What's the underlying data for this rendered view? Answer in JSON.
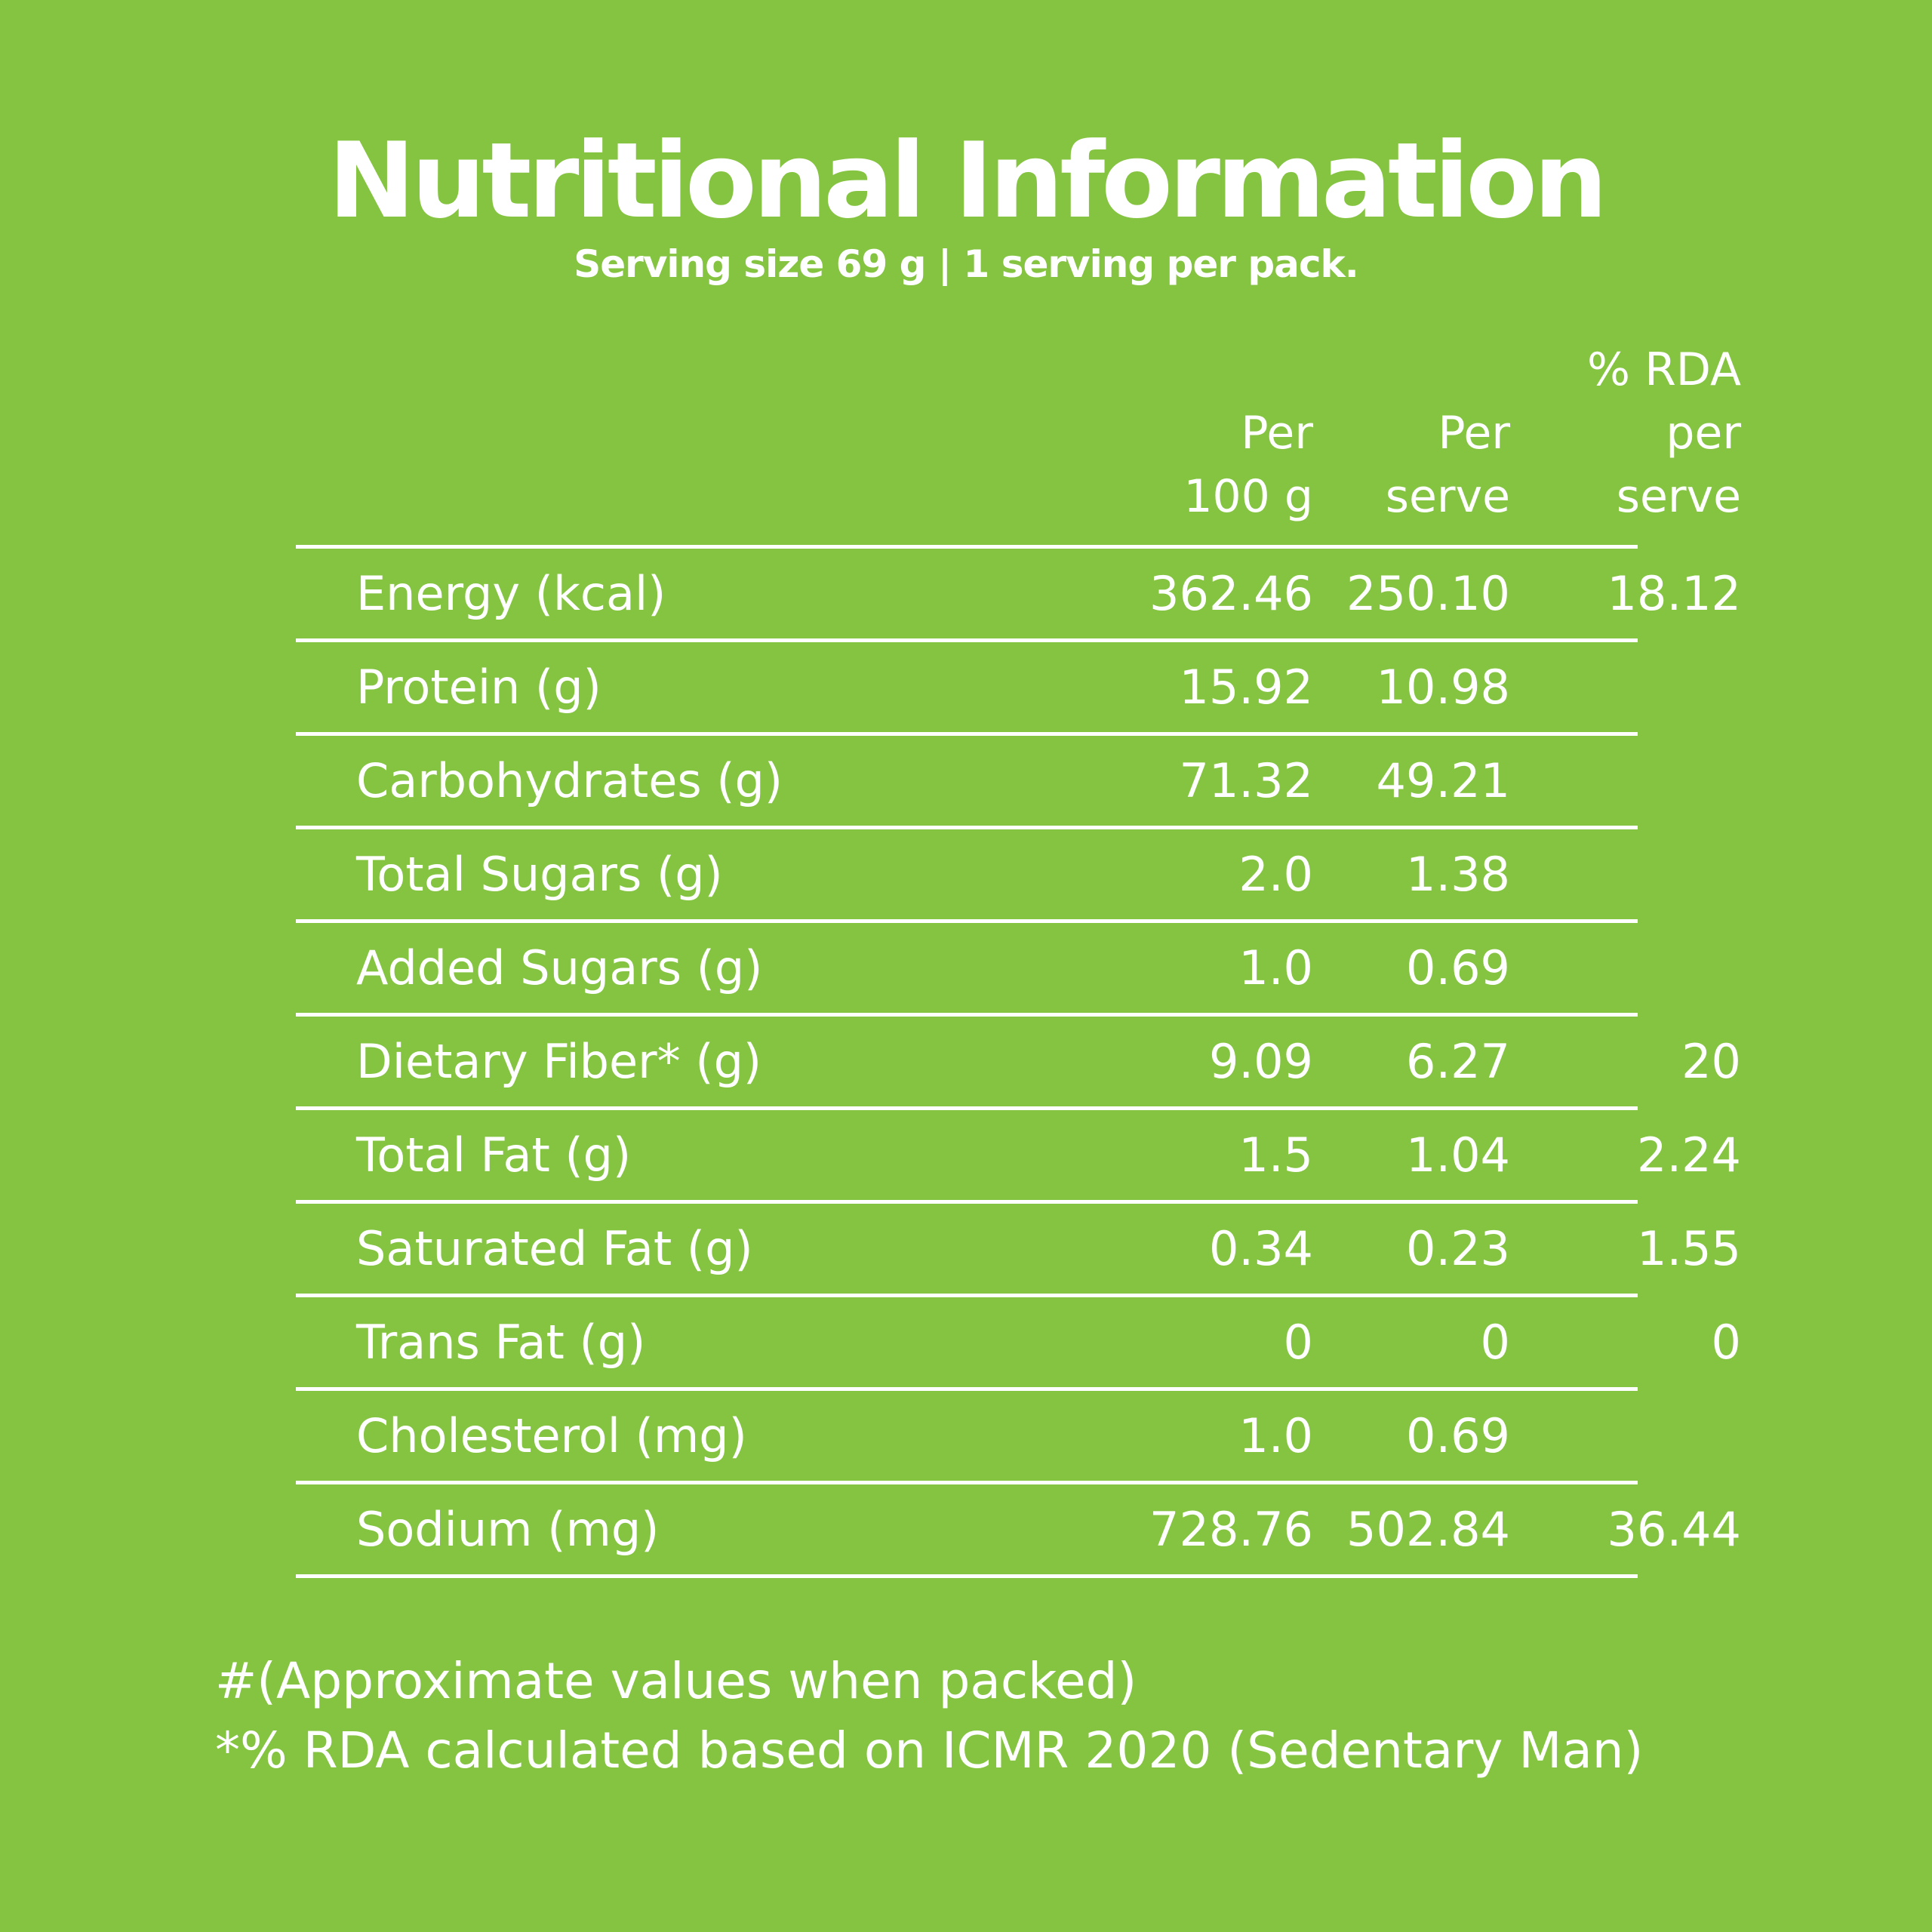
{
  "title": "Nutritional Information",
  "subtitle": "Serving size 69 g  |  1 serving per pack.",
  "columns": {
    "per_100g": "Per\n100 g",
    "per_serve": "Per\nserve",
    "rda": "% RDA\nper\nserve"
  },
  "rows": [
    {
      "name": "Energy (kcal)",
      "per_100g": "362.46",
      "per_serve": "250.10",
      "rda": "18.12"
    },
    {
      "name": "Protein (g)",
      "per_100g": "15.92",
      "per_serve": "10.98",
      "rda": ""
    },
    {
      "name": "Carbohydrates (g)",
      "per_100g": "71.32",
      "per_serve": "49.21",
      "rda": ""
    },
    {
      "name": "Total Sugars (g)",
      "per_100g": "2.0",
      "per_serve": "1.38",
      "rda": ""
    },
    {
      "name": "Added Sugars (g)",
      "per_100g": "1.0",
      "per_serve": "0.69",
      "rda": ""
    },
    {
      "name": "Dietary Fiber* (g)",
      "per_100g": "9.09",
      "per_serve": "6.27",
      "rda": "20"
    },
    {
      "name": "Total Fat (g)",
      "per_100g": "1.5",
      "per_serve": "1.04",
      "rda": "2.24"
    },
    {
      "name": "Saturated Fat (g)",
      "per_100g": "0.34",
      "per_serve": "0.23",
      "rda": "1.55"
    },
    {
      "name": "Trans Fat (g)",
      "per_100g": "0",
      "per_serve": "0",
      "rda": "0"
    },
    {
      "name": "Cholesterol (mg)",
      "per_100g": "1.0",
      "per_serve": "0.69",
      "rda": ""
    },
    {
      "name": "Sodium (mg)",
      "per_100g": "728.76",
      "per_serve": "502.84",
      "rda": "36.44"
    }
  ],
  "footnotes": [
    "#(Approximate values when packed)",
    "*% RDA calculated based on ICMR 2020 (Sedentary Man)"
  ],
  "colors": {
    "background": "#85c441",
    "text": "#ffffff"
  }
}
